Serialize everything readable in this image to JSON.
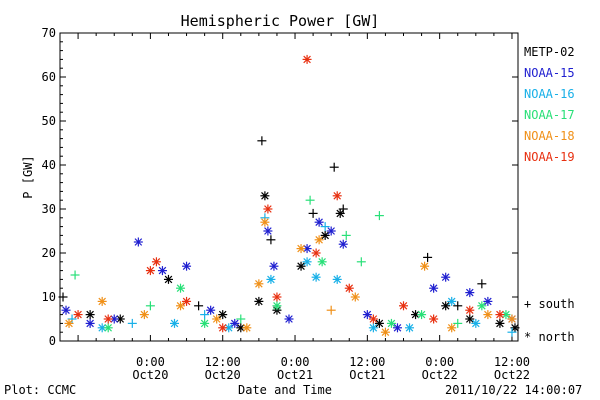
{
  "chart_data": {
    "type": "scatter",
    "title": "Hemispheric Power [GW]",
    "ylabel": "P [GW]",
    "xlabel": "Date and Time",
    "ylim": [
      0,
      70
    ],
    "yticks": [
      0,
      10,
      20,
      30,
      40,
      50,
      60,
      70
    ],
    "xlim": [
      "2011-10-19 09:00",
      "2011-10-22 13:00"
    ],
    "xticks": [
      {
        "time": "2011-10-20 00:00",
        "line1": "0:00",
        "line2": "Oct20"
      },
      {
        "time": "2011-10-20 12:00",
        "line1": "12:00",
        "line2": "Oct20"
      },
      {
        "time": "2011-10-21 00:00",
        "line1": "0:00",
        "line2": "Oct21"
      },
      {
        "time": "2011-10-21 12:00",
        "line1": "12:00",
        "line2": "Oct21"
      },
      {
        "time": "2011-10-22 00:00",
        "line1": "0:00",
        "line2": "Oct22"
      },
      {
        "time": "2011-10-22 12:00",
        "line1": "12:00",
        "line2": "Oct22"
      }
    ],
    "grid": false,
    "legend_position": "right",
    "markers": {
      "south": "+",
      "north": "*"
    },
    "series": [
      {
        "name": "METP-02",
        "color": "#000000",
        "points": [
          [
            "2011-10-19 09:30",
            10,
            "S"
          ],
          [
            "2011-10-19 14:00",
            6,
            "N"
          ],
          [
            "2011-10-19 19:00",
            5,
            "N"
          ],
          [
            "2011-10-20 03:00",
            14,
            "N"
          ],
          [
            "2011-10-20 08:00",
            8,
            "S"
          ],
          [
            "2011-10-20 12:00",
            6,
            "N"
          ],
          [
            "2011-10-20 15:00",
            3,
            "N"
          ],
          [
            "2011-10-20 18:00",
            9,
            "N"
          ],
          [
            "2011-10-20 18:30",
            45.5,
            "S"
          ],
          [
            "2011-10-20 19:00",
            33,
            "N"
          ],
          [
            "2011-10-20 20:00",
            23,
            "S"
          ],
          [
            "2011-10-20 21:00",
            7,
            "N"
          ],
          [
            "2011-10-21 01:00",
            17,
            "N"
          ],
          [
            "2011-10-21 03:00",
            29,
            "S"
          ],
          [
            "2011-10-21 05:00",
            24,
            "N"
          ],
          [
            "2011-10-21 06:30",
            39.5,
            "S"
          ],
          [
            "2011-10-21 07:30",
            29,
            "N"
          ],
          [
            "2011-10-21 08:00",
            30,
            "S"
          ],
          [
            "2011-10-21 14:00",
            4,
            "N"
          ],
          [
            "2011-10-21 20:00",
            6,
            "N"
          ],
          [
            "2011-10-21 22:00",
            19,
            "S"
          ],
          [
            "2011-10-22 01:00",
            8,
            "N"
          ],
          [
            "2011-10-22 03:00",
            8,
            "S"
          ],
          [
            "2011-10-22 05:00",
            5,
            "N"
          ],
          [
            "2011-10-22 07:00",
            13,
            "S"
          ],
          [
            "2011-10-22 10:00",
            4,
            "N"
          ],
          [
            "2011-10-22 12:30",
            3,
            "N"
          ]
        ]
      },
      {
        "name": "NOAA-15",
        "color": "#1f1fd0",
        "points": [
          [
            "2011-10-19 10:00",
            7,
            "N"
          ],
          [
            "2011-10-19 14:00",
            4,
            "N"
          ],
          [
            "2011-10-19 18:00",
            5,
            "N"
          ],
          [
            "2011-10-19 22:00",
            22.5,
            "N"
          ],
          [
            "2011-10-20 02:00",
            16,
            "N"
          ],
          [
            "2011-10-20 06:00",
            17,
            "N"
          ],
          [
            "2011-10-20 10:00",
            7,
            "N"
          ],
          [
            "2011-10-20 14:00",
            4,
            "N"
          ],
          [
            "2011-10-20 19:30",
            25,
            "N"
          ],
          [
            "2011-10-20 20:30",
            17,
            "N"
          ],
          [
            "2011-10-20 23:00",
            5,
            "N"
          ],
          [
            "2011-10-21 02:00",
            21,
            "N"
          ],
          [
            "2011-10-21 04:00",
            27,
            "N"
          ],
          [
            "2011-10-21 06:00",
            25,
            "N"
          ],
          [
            "2011-10-21 08:00",
            22,
            "N"
          ],
          [
            "2011-10-21 12:00",
            6,
            "N"
          ],
          [
            "2011-10-21 17:00",
            3,
            "N"
          ],
          [
            "2011-10-21 23:00",
            12,
            "N"
          ],
          [
            "2011-10-22 01:00",
            14.5,
            "N"
          ],
          [
            "2011-10-22 05:00",
            11,
            "N"
          ],
          [
            "2011-10-22 08:00",
            9,
            "N"
          ],
          [
            "2011-10-22 12:00",
            5,
            "N"
          ]
        ]
      },
      {
        "name": "NOAA-16",
        "color": "#18b0e8",
        "points": [
          [
            "2011-10-19 11:00",
            5,
            "S"
          ],
          [
            "2011-10-19 16:00",
            3,
            "N"
          ],
          [
            "2011-10-19 21:00",
            4,
            "S"
          ],
          [
            "2011-10-20 04:00",
            4,
            "N"
          ],
          [
            "2011-10-20 09:00",
            6,
            "S"
          ],
          [
            "2011-10-20 13:00",
            3,
            "N"
          ],
          [
            "2011-10-20 19:00",
            28,
            "S"
          ],
          [
            "2011-10-20 20:00",
            14,
            "N"
          ],
          [
            "2011-10-21 02:00",
            18,
            "N"
          ],
          [
            "2011-10-21 03:30",
            14.5,
            "N"
          ],
          [
            "2011-10-21 05:00",
            26,
            "S"
          ],
          [
            "2011-10-21 07:00",
            14,
            "N"
          ],
          [
            "2011-10-21 13:00",
            3,
            "N"
          ],
          [
            "2011-10-21 19:00",
            3,
            "N"
          ],
          [
            "2011-10-22 02:00",
            9,
            "N"
          ],
          [
            "2011-10-22 06:00",
            4,
            "N"
          ],
          [
            "2011-10-22 12:00",
            2,
            "S"
          ]
        ]
      },
      {
        "name": "NOAA-17",
        "color": "#28e078",
        "points": [
          [
            "2011-10-19 11:30",
            15,
            "S"
          ],
          [
            "2011-10-19 17:00",
            3,
            "N"
          ],
          [
            "2011-10-20 00:00",
            8,
            "S"
          ],
          [
            "2011-10-20 05:00",
            12,
            "N"
          ],
          [
            "2011-10-20 09:00",
            4,
            "N"
          ],
          [
            "2011-10-20 15:00",
            5,
            "S"
          ],
          [
            "2011-10-20 21:00",
            8,
            "N"
          ],
          [
            "2011-10-21 02:30",
            32,
            "S"
          ],
          [
            "2011-10-21 04:30",
            18,
            "N"
          ],
          [
            "2011-10-21 08:30",
            24,
            "S"
          ],
          [
            "2011-10-21 11:00",
            18,
            "S"
          ],
          [
            "2011-10-21 14:00",
            28.5,
            "S"
          ],
          [
            "2011-10-21 16:00",
            4,
            "N"
          ],
          [
            "2011-10-21 21:00",
            6,
            "N"
          ],
          [
            "2011-10-22 03:00",
            4,
            "S"
          ],
          [
            "2011-10-22 07:00",
            8,
            "N"
          ],
          [
            "2011-10-22 11:00",
            6,
            "N"
          ]
        ]
      },
      {
        "name": "NOAA-18",
        "color": "#f09018",
        "points": [
          [
            "2011-10-19 10:30",
            4,
            "N"
          ],
          [
            "2011-10-19 16:00",
            9,
            "N"
          ],
          [
            "2011-10-19 23:00",
            6,
            "N"
          ],
          [
            "2011-10-20 05:00",
            8,
            "N"
          ],
          [
            "2011-10-20 11:00",
            5,
            "N"
          ],
          [
            "2011-10-20 16:00",
            3,
            "N"
          ],
          [
            "2011-10-20 18:00",
            13,
            "N"
          ],
          [
            "2011-10-20 19:00",
            27,
            "N"
          ],
          [
            "2011-10-21 01:00",
            21,
            "N"
          ],
          [
            "2011-10-21 04:00",
            23,
            "N"
          ],
          [
            "2011-10-21 06:00",
            7,
            "S"
          ],
          [
            "2011-10-21 10:00",
            10,
            "N"
          ],
          [
            "2011-10-21 15:00",
            2,
            "N"
          ],
          [
            "2011-10-21 21:30",
            17,
            "N"
          ],
          [
            "2011-10-22 02:00",
            3,
            "N"
          ],
          [
            "2011-10-22 08:00",
            6,
            "N"
          ],
          [
            "2011-10-22 12:00",
            5,
            "N"
          ]
        ]
      },
      {
        "name": "NOAA-19",
        "color": "#e83010",
        "points": [
          [
            "2011-10-19 12:00",
            6,
            "N"
          ],
          [
            "2011-10-19 17:00",
            5,
            "N"
          ],
          [
            "2011-10-20 00:00",
            16,
            "N"
          ],
          [
            "2011-10-20 01:00",
            18,
            "N"
          ],
          [
            "2011-10-20 06:00",
            9,
            "N"
          ],
          [
            "2011-10-20 12:00",
            3,
            "N"
          ],
          [
            "2011-10-20 19:30",
            30,
            "N"
          ],
          [
            "2011-10-20 21:00",
            10,
            "N"
          ],
          [
            "2011-10-21 02:00",
            64,
            "N"
          ],
          [
            "2011-10-21 03:30",
            20,
            "N"
          ],
          [
            "2011-10-21 07:00",
            33,
            "N"
          ],
          [
            "2011-10-21 09:00",
            12,
            "N"
          ],
          [
            "2011-10-21 13:00",
            5,
            "N"
          ],
          [
            "2011-10-21 18:00",
            8,
            "N"
          ],
          [
            "2011-10-21 23:00",
            5,
            "N"
          ],
          [
            "2011-10-22 05:00",
            7,
            "N"
          ],
          [
            "2011-10-22 10:00",
            6,
            "N"
          ]
        ]
      }
    ]
  },
  "legend_labels": {
    "south": "south",
    "north": "north"
  },
  "footer": {
    "left": "Plot: CCMC",
    "center": "Date and Time",
    "right": "2011/10/22 14:00:07"
  }
}
